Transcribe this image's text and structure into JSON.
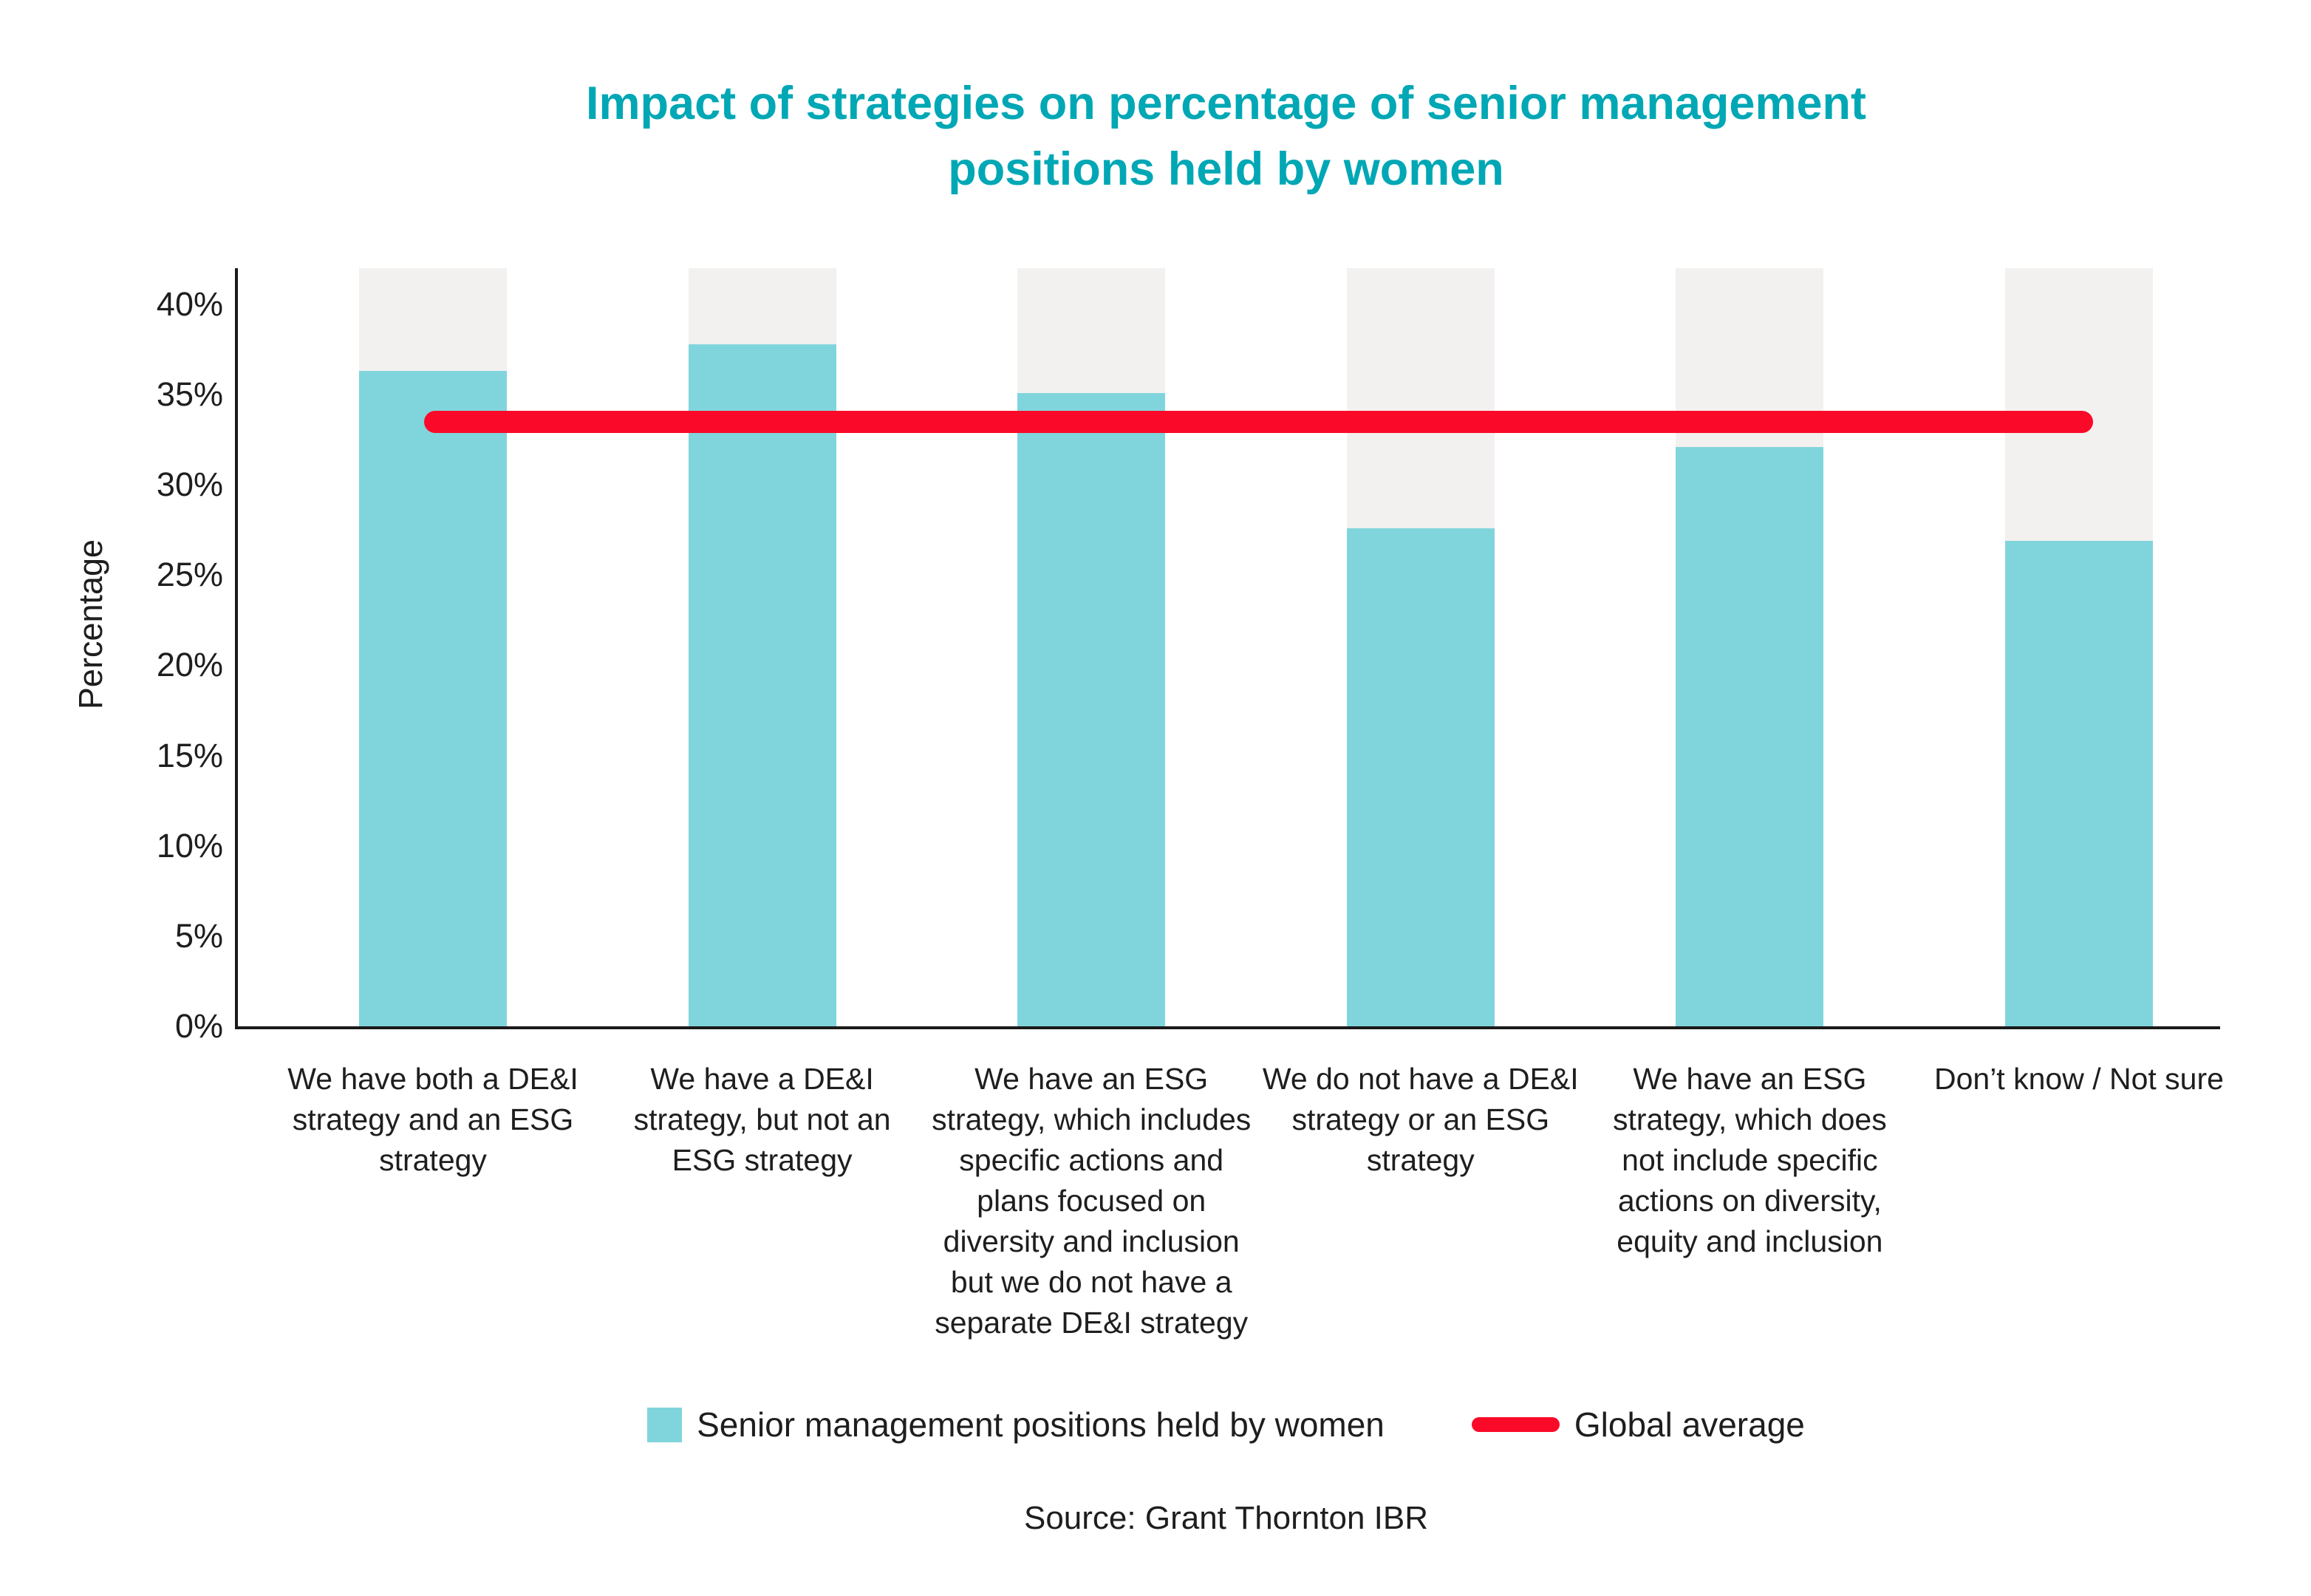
{
  "chart": {
    "title": "Impact of strategies on percentage of senior management positions held by women",
    "title_color": "#00a7b5",
    "ylabel": "Percentage",
    "source": "Source: Grant Thornton IBR",
    "text_color": "#1e1e1e",
    "axis_color": "#1a1a1a",
    "legend": [
      {
        "marker": "square",
        "color": "#80d5dc",
        "label": "Senior management positions held by women"
      },
      {
        "marker": "line",
        "color": "#fa0a28",
        "label": "Global average"
      }
    ]
  },
  "chart_data": {
    "type": "bar",
    "title": "Impact of strategies on percentage of senior management positions held by women",
    "xlabel": "",
    "ylabel": "Percentage",
    "categories": [
      "We have both a DE&I strategy and an ESG strategy",
      "We have a DE&I strategy, but not an ESG strategy",
      "We have an ESG strategy, which includes specific actions and plans focused on diversity and inclusion but we do not have a separate DE&I strategy",
      "We do not have a DE&I strategy or an ESG strategy",
      "We have an ESG strategy, which does not include specific actions on diversity, equity and inclusion",
      "Don’t know / Not sure"
    ],
    "series": [
      {
        "name": "Senior management positions held by women",
        "values": [
          36.3,
          37.8,
          35.1,
          27.6,
          32.1,
          26.9
        ]
      }
    ],
    "reference_line": {
      "name": "Global average",
      "value": 33.5,
      "color": "#fa0a28"
    },
    "yticks": [
      "0%",
      "5%",
      "10%",
      "15%",
      "20%",
      "25%",
      "30%",
      "35%",
      "40%"
    ],
    "ylim": [
      0,
      42
    ],
    "grid": false,
    "bar_color": "#80d5dc",
    "bar_background_color": "#f2f1ef",
    "legend_position": "bottom"
  }
}
